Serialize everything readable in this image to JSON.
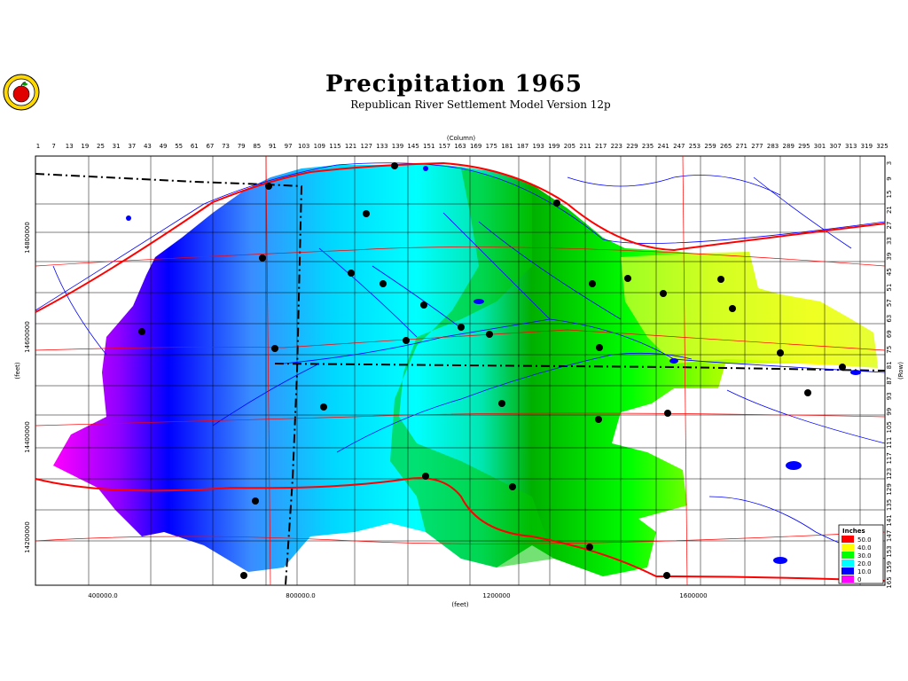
{
  "title": "Precipitation  1965",
  "subtitle": "Republican River Settlement Model Version 12p",
  "axes": {
    "column_label": "(Column)",
    "row_label": "(Row)",
    "x_label": "(feet)",
    "y_label": "(feet)",
    "x_ticks": [
      "400000.0",
      "800000.0",
      "1200000",
      "1600000"
    ],
    "y_ticks": [
      "14800000",
      "14600000",
      "14400000",
      "14200000"
    ],
    "columns": [
      "1",
      "7",
      "13",
      "19",
      "25",
      "31",
      "37",
      "43",
      "49",
      "55",
      "61",
      "67",
      "73",
      "79",
      "85",
      "91",
      "97",
      "103",
      "109",
      "115",
      "121",
      "127",
      "133",
      "139",
      "145",
      "151",
      "157",
      "163",
      "169",
      "175",
      "181",
      "187",
      "193",
      "199",
      "205",
      "211",
      "217",
      "223",
      "229",
      "235",
      "241",
      "247",
      "253",
      "259",
      "265",
      "271",
      "277",
      "283",
      "289",
      "295",
      "301",
      "307",
      "313",
      "319",
      "325"
    ],
    "rows": [
      "3",
      "9",
      "15",
      "21",
      "27",
      "33",
      "39",
      "45",
      "51",
      "57",
      "63",
      "69",
      "75",
      "81",
      "87",
      "93",
      "99",
      "105",
      "111",
      "117",
      "123",
      "129",
      "135",
      "141",
      "147",
      "153",
      "159",
      "165"
    ]
  },
  "legend": {
    "title": "Inches",
    "entries": [
      {
        "label": "50.0",
        "color": "#ff0000"
      },
      {
        "label": "40.0",
        "color": "#ffff00"
      },
      {
        "label": "30.0",
        "color": "#00ff00"
      },
      {
        "label": "20.0",
        "color": "#00ffff"
      },
      {
        "label": "10.0",
        "color": "#0000ff"
      },
      {
        "label": "0",
        "color": "#ff00ff"
      }
    ]
  },
  "colors": {
    "river": "#0000ff",
    "road": "#ff0000",
    "boundary": "#000000"
  }
}
